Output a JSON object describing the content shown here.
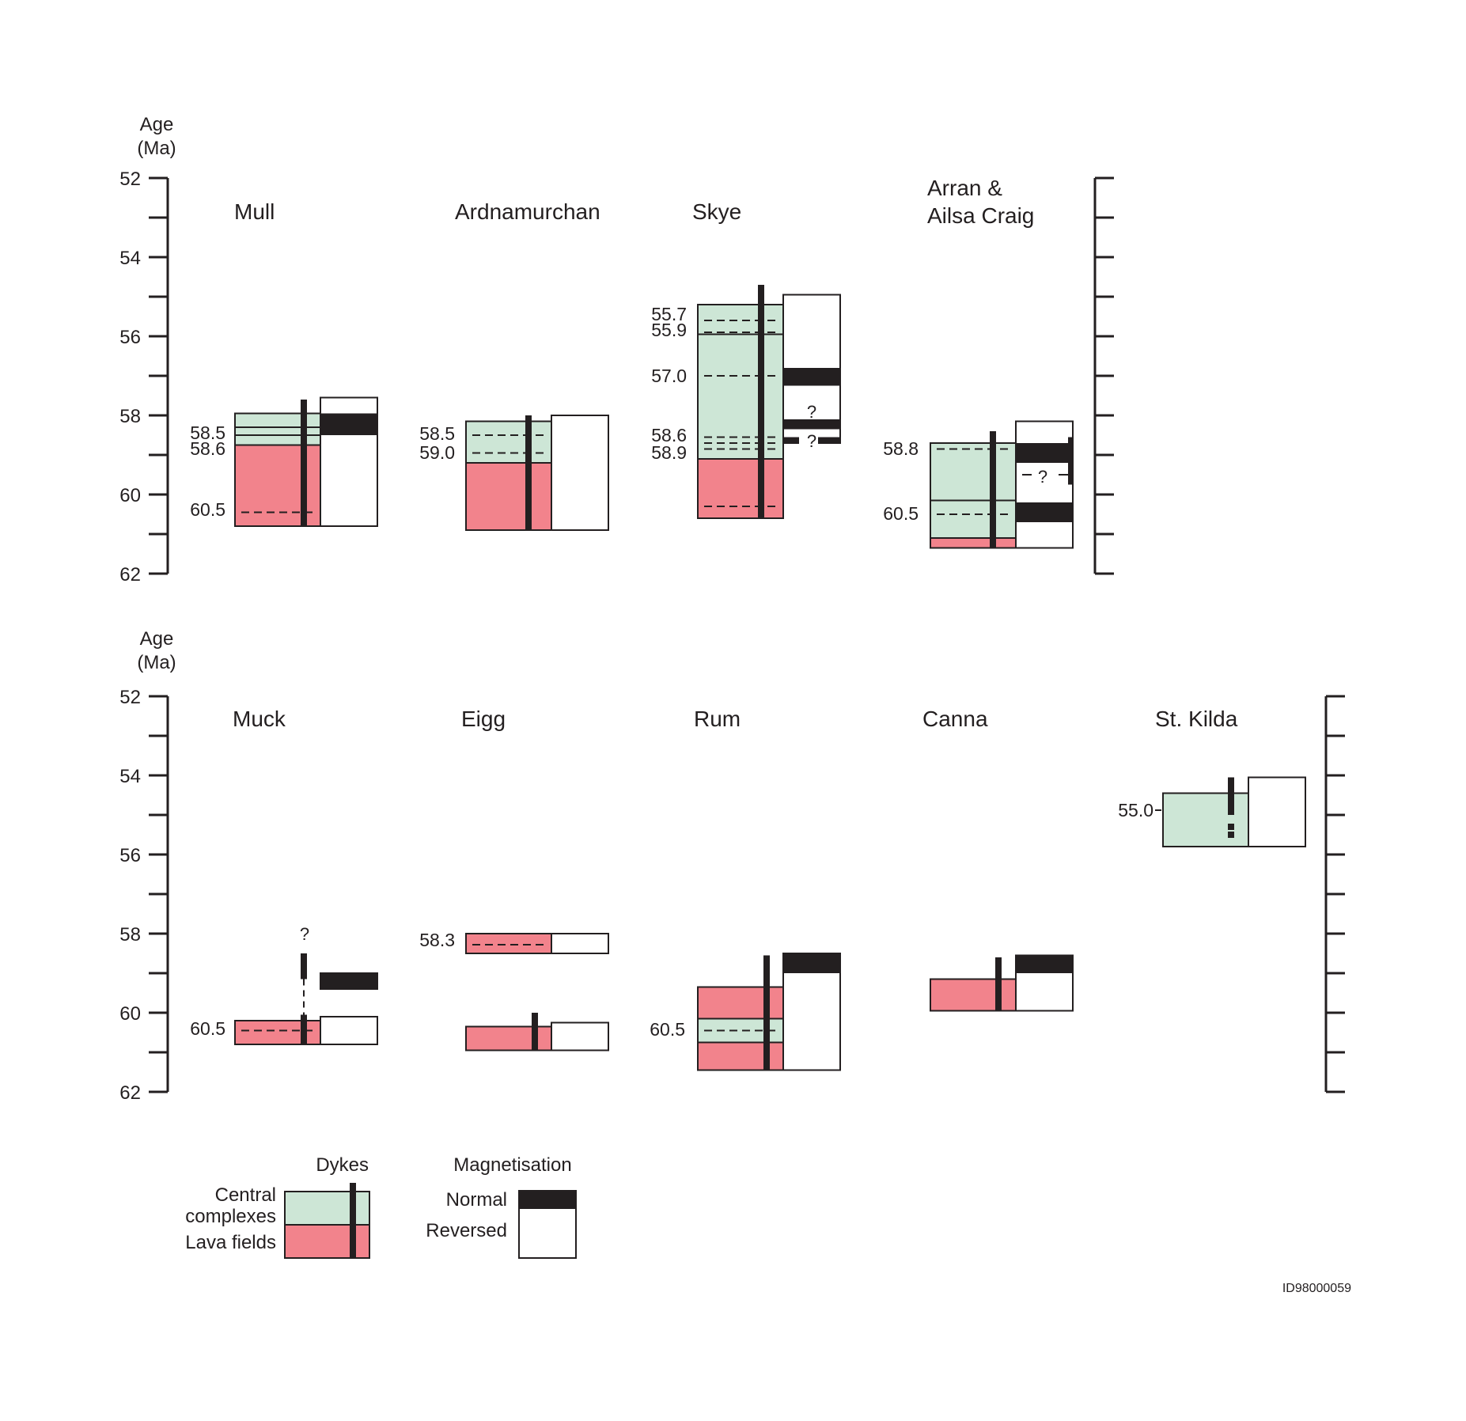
{
  "colors": {
    "central": "#cde6d6",
    "lava": "#f2838c",
    "ink": "#231f20",
    "reversed": "#ffffff"
  },
  "axis": {
    "label_line1": "Age",
    "label_line2": "(Ma)",
    "ticks": [
      "52",
      "54",
      "56",
      "58",
      "60",
      "62"
    ]
  },
  "top_row": [
    {
      "name": "Mull",
      "central": [
        57.95,
        58.75
      ],
      "lava": [
        58.75,
        60.8
      ],
      "solid_lines": [
        58.3,
        58.5
      ],
      "dashed_lines": [
        60.45
      ],
      "dykes": [
        [
          57.6,
          60.8
        ]
      ],
      "mag_range": [
        57.55,
        60.8
      ],
      "mag_normal": [
        [
          57.95,
          58.5
        ]
      ],
      "age_labels": [
        "58.5",
        "58.6",
        "60.5"
      ]
    },
    {
      "name": "Ardnamurchan",
      "central": [
        58.15,
        59.2
      ],
      "lava": [
        59.2,
        60.9
      ],
      "solid_lines": [],
      "dashed_lines": [
        58.5,
        58.95
      ],
      "dykes": [
        [
          58.0,
          60.9
        ]
      ],
      "mag_range": [
        58.0,
        60.9
      ],
      "mag_normal": [],
      "age_labels": [
        "58.5",
        "59.0"
      ]
    },
    {
      "name": "Skye",
      "central": [
        55.2,
        59.1
      ],
      "lava": [
        59.1,
        60.6
      ],
      "solid_lines": [
        55.95
      ],
      "dashed_lines": [
        55.6,
        55.9,
        57.0,
        58.55,
        58.7,
        58.85,
        60.3
      ],
      "dykes": [
        [
          54.7,
          60.6
        ]
      ],
      "mag_range": [
        54.95,
        58.7
      ],
      "mag_normal": [
        [
          56.8,
          57.25
        ],
        [
          58.1,
          58.35
        ],
        [
          58.55,
          58.7
        ]
      ],
      "question_marks": [
        "?",
        "?"
      ],
      "age_labels": [
        "55.7",
        "55.9",
        "57.0",
        "58.6",
        "58.9"
      ]
    },
    {
      "name_line1": "Arran &",
      "name_line2": "Ailsa Craig",
      "central": [
        58.7,
        61.1
      ],
      "lava": [
        61.1,
        61.35
      ],
      "solid_lines": [
        60.15
      ],
      "dashed_lines": [
        58.85,
        60.5
      ],
      "dykes": [
        [
          58.4,
          61.35
        ]
      ],
      "mag_range": [
        58.15,
        61.35
      ],
      "mag_normal": [
        [
          58.7,
          59.2
        ],
        [
          60.2,
          60.7
        ]
      ],
      "question_marks": [
        "?"
      ],
      "age_labels": [
        "58.8",
        "60.5"
      ]
    }
  ],
  "bottom_row": [
    {
      "name": "Muck",
      "central": null,
      "lava": [
        60.2,
        60.8
      ],
      "dashed_lines": [
        60.45
      ],
      "dykes": [
        [
          58.5,
          59.15
        ],
        [
          60.05,
          60.8
        ]
      ],
      "dyke_dashed": [
        59.15,
        60.05
      ],
      "mag_blocks": [
        {
          "range": [
            59.0,
            59.4
          ],
          "normal": true
        },
        {
          "range": [
            60.1,
            60.8
          ],
          "normal": false
        }
      ],
      "question_marks": [
        "?"
      ],
      "age_labels": [
        "60.5"
      ]
    },
    {
      "name": "Eigg",
      "lava_blocks": [
        [
          58.0,
          58.5
        ],
        [
          60.35,
          60.95
        ]
      ],
      "dashed_lines": [
        58.28
      ],
      "dykes": [
        [
          60.0,
          60.95
        ]
      ],
      "mag_blocks": [
        {
          "range": [
            58.0,
            58.5
          ],
          "normal": false
        },
        {
          "range": [
            60.25,
            60.95
          ],
          "normal": false
        }
      ],
      "age_labels": [
        "58.3"
      ]
    },
    {
      "name": "Rum",
      "lava_blocks": [
        [
          59.35,
          60.15
        ],
        [
          60.75,
          61.45
        ]
      ],
      "central_blocks": [
        [
          60.15,
          60.75
        ]
      ],
      "dashed_lines": [
        60.45
      ],
      "dykes": [
        [
          58.55,
          61.45
        ]
      ],
      "mag_range": [
        58.5,
        61.45
      ],
      "mag_normal": [
        [
          58.5,
          59.0
        ]
      ],
      "age_labels": [
        "60.5"
      ]
    },
    {
      "name": "Canna",
      "lava_blocks": [
        [
          59.15,
          59.95
        ]
      ],
      "dykes": [
        [
          58.6,
          59.95
        ]
      ],
      "mag_range": [
        58.55,
        59.95
      ],
      "mag_normal": [
        [
          58.55,
          59.0
        ]
      ],
      "age_labels": []
    },
    {
      "name": "St. Kilda",
      "central_blocks": [
        [
          54.45,
          55.8
        ]
      ],
      "dykes": [
        [
          54.05,
          55.0
        ]
      ],
      "dyke_dots": [
        55.3,
        55.5
      ],
      "mag_range": [
        54.05,
        55.8
      ],
      "mag_normal": [],
      "age_labels": [
        "55.0"
      ]
    }
  ],
  "legend": {
    "dykes_title": "Dykes",
    "central_line1": "Central",
    "central_line2": "complexes",
    "lava_label": "Lava fields",
    "mag_title": "Magnetisation",
    "normal_label": "Normal",
    "reversed_label": "Reversed"
  },
  "figure_id": "ID98000059"
}
